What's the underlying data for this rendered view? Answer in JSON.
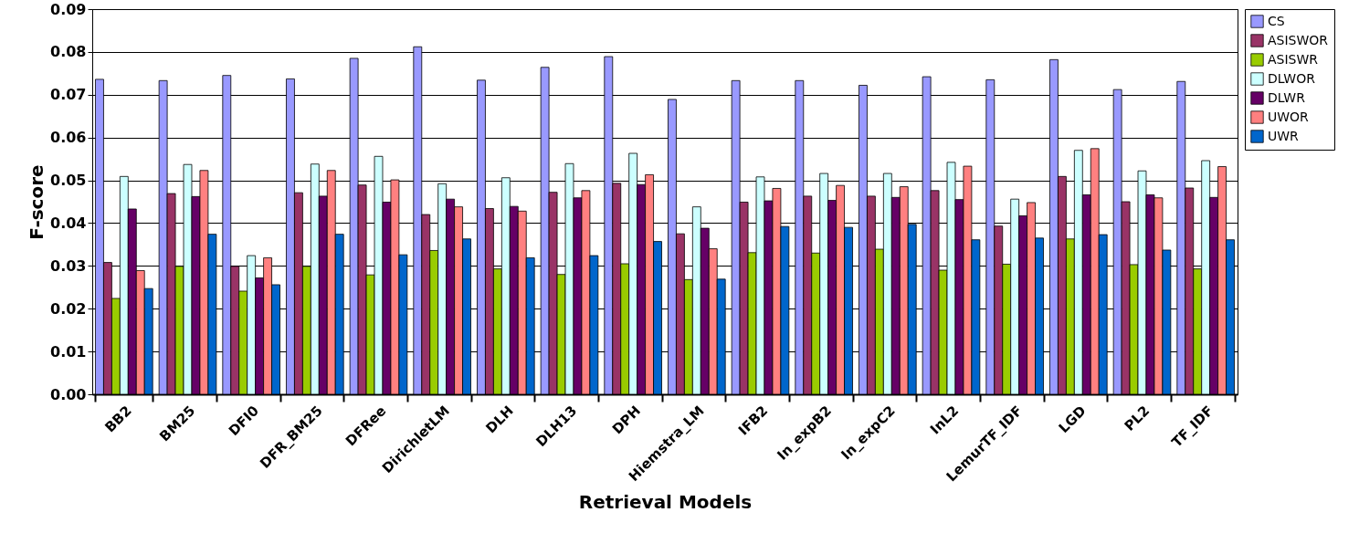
{
  "chart_data": {
    "type": "bar",
    "xlabel": "Retrieval Models",
    "ylabel": "F-score",
    "categories": [
      "BB2",
      "BM25",
      "DFI0",
      "DFR_BM25",
      "DFRee",
      "DirichletLM",
      "DLH",
      "DLH13",
      "DPH",
      "Hiemstra_LM",
      "IFB2",
      "In_expB2",
      "In_expC2",
      "InL2",
      "LemurTF_IDF",
      "LGD",
      "PL2",
      "TF_IDF"
    ],
    "series": [
      {
        "name": "CS",
        "color": "#9999ff",
        "values": [
          0.0736,
          0.0733,
          0.0745,
          0.0737,
          0.0785,
          0.0812,
          0.0734,
          0.0764,
          0.0789,
          0.0689,
          0.0733,
          0.0733,
          0.0722,
          0.0742,
          0.0735,
          0.0782,
          0.0712,
          0.0731
        ]
      },
      {
        "name": "ASISWOR",
        "color": "#993366",
        "values": [
          0.0308,
          0.0469,
          0.0299,
          0.0471,
          0.0489,
          0.042,
          0.0434,
          0.0472,
          0.0493,
          0.0375,
          0.0449,
          0.0463,
          0.0463,
          0.0476,
          0.0393,
          0.0509,
          0.045,
          0.0482
        ]
      },
      {
        "name": "ASISWR",
        "color": "#99cc00",
        "values": [
          0.0224,
          0.0299,
          0.0241,
          0.0299,
          0.0279,
          0.0336,
          0.0293,
          0.028,
          0.0305,
          0.0268,
          0.0331,
          0.033,
          0.0339,
          0.029,
          0.0304,
          0.0363,
          0.0303,
          0.0293
        ]
      },
      {
        "name": "DLWOR",
        "color": "#ccffff",
        "values": [
          0.0509,
          0.0537,
          0.0324,
          0.0538,
          0.0556,
          0.0492,
          0.0506,
          0.0539,
          0.0563,
          0.0438,
          0.0508,
          0.0516,
          0.0516,
          0.0542,
          0.0456,
          0.057,
          0.0522,
          0.0546
        ]
      },
      {
        "name": "DLWR",
        "color": "#660066",
        "values": [
          0.0433,
          0.0462,
          0.0272,
          0.0463,
          0.0449,
          0.0456,
          0.0439,
          0.0459,
          0.049,
          0.0388,
          0.0452,
          0.0453,
          0.046,
          0.0455,
          0.0417,
          0.0466,
          0.0466,
          0.046
        ]
      },
      {
        "name": "UWOR",
        "color": "#ff8080",
        "values": [
          0.0289,
          0.0523,
          0.0319,
          0.0523,
          0.0501,
          0.0438,
          0.0428,
          0.0476,
          0.0513,
          0.034,
          0.0481,
          0.0488,
          0.0485,
          0.0533,
          0.0448,
          0.0574,
          0.0459,
          0.0532
        ]
      },
      {
        "name": "UWR",
        "color": "#0066cc",
        "values": [
          0.0247,
          0.0374,
          0.0256,
          0.0374,
          0.0326,
          0.0363,
          0.0319,
          0.0324,
          0.0357,
          0.0269,
          0.0392,
          0.039,
          0.0397,
          0.0361,
          0.0365,
          0.0373,
          0.0337,
          0.0361
        ]
      }
    ],
    "ylim": [
      0,
      0.09
    ],
    "yticks": [
      {
        "value": 0,
        "label": "0.00"
      },
      0.01,
      0.02,
      0.03,
      0.04,
      0.05,
      0.06,
      0.07,
      0.08,
      0.09
    ],
    "grid": "y",
    "legend": "right"
  }
}
